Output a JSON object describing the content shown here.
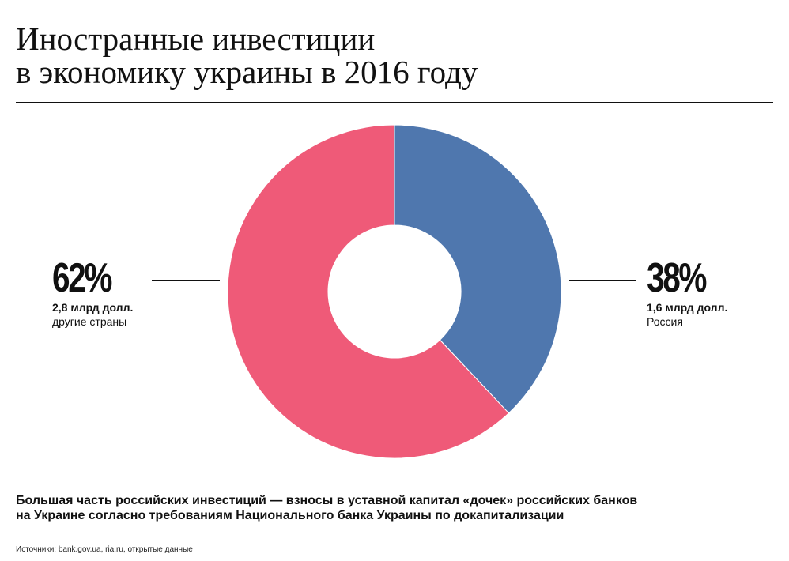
{
  "title_lines": [
    "Иностранные инвестиции",
    "в экономику украины в 2016 году"
  ],
  "chart_data": {
    "type": "pie",
    "donut": true,
    "series": [
      {
        "name": "Россия",
        "value": 38,
        "percent_label": "38%",
        "amount_label": "1,6 млрд долл.",
        "color": "#4f77ae"
      },
      {
        "name": "другие страны",
        "value": 62,
        "percent_label": "62%",
        "amount_label": "2,8 млрд долл.",
        "color": "#ef5a78"
      }
    ]
  },
  "note_lines": [
    "Большая часть российских инвестиций — взносы в уставной капитал «дочек» российских банков",
    "на Украине согласно требованиям Национального банка Украины по докапитализации"
  ],
  "source": "Источники: bank.gov.ua, ria.ru, открытые данные"
}
